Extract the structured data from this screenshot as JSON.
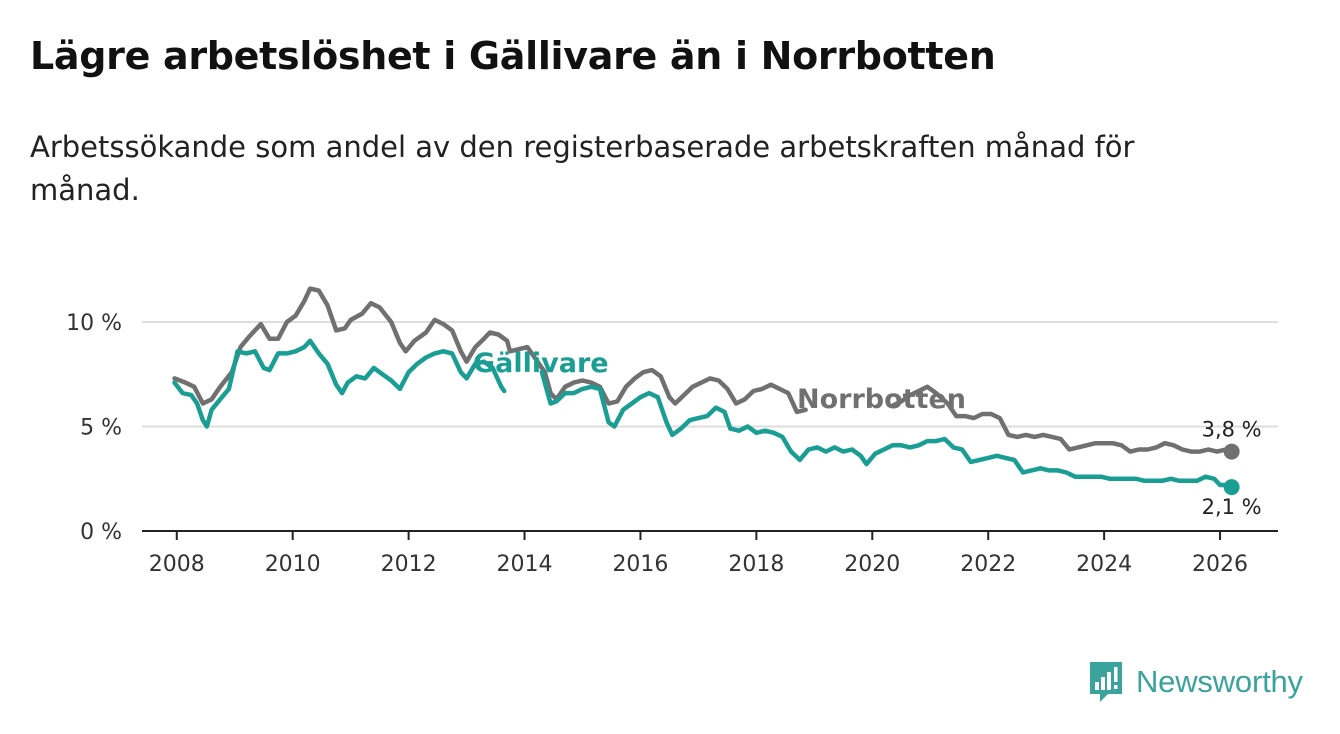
{
  "title": "Lägre arbetslöshet i Gällivare än i Norrbotten",
  "subtitle": "Arbetssökande som andel av den registerbaserade arbetskraften månad för månad.",
  "brand": {
    "name": "Newsworthy",
    "icon": "newsworthy-logo-icon",
    "color": "#3aa39b"
  },
  "colors": {
    "gallivare": "#1a9e94",
    "norrbotten": "#707070",
    "grid": "#dddddd",
    "axis": "#222222"
  },
  "chart_data": {
    "type": "line",
    "title": "Lägre arbetslöshet i Gällivare än i Norrbotten",
    "xlabel": "",
    "ylabel": "",
    "xlim": [
      2007.4,
      2027.0
    ],
    "ylim": [
      0,
      11
    ],
    "x_ticks": [
      2008,
      2010,
      2012,
      2014,
      2016,
      2018,
      2020,
      2022,
      2024,
      2026
    ],
    "x_tick_labels": [
      "2008",
      "2010",
      "2012",
      "2014",
      "2016",
      "2018",
      "2020",
      "2022",
      "2024",
      "2026"
    ],
    "y_ticks": [
      0,
      5,
      10
    ],
    "y_tick_labels": [
      "0 %",
      "5 %",
      "10 %"
    ],
    "grid": true,
    "series": [
      {
        "name": "Norrbotten",
        "label": "Norrbotten",
        "end_label": "3,8 %",
        "points": [
          [
            2007.96,
            7.3
          ],
          [
            2008.15,
            7.1
          ],
          [
            2008.3,
            6.9
          ],
          [
            2008.45,
            6.1
          ],
          [
            2008.6,
            6.3
          ],
          [
            2008.75,
            6.9
          ],
          [
            2008.95,
            7.6
          ],
          [
            2009.1,
            8.8
          ],
          [
            2009.25,
            9.3
          ],
          [
            2009.45,
            9.9
          ],
          [
            2009.6,
            9.2
          ],
          [
            2009.75,
            9.2
          ],
          [
            2009.9,
            10.0
          ],
          [
            2010.05,
            10.3
          ],
          [
            2010.2,
            11.0
          ],
          [
            2010.3,
            11.6
          ],
          [
            2010.45,
            11.5
          ],
          [
            2010.6,
            10.8
          ],
          [
            2010.75,
            9.6
          ],
          [
            2010.9,
            9.7
          ],
          [
            2011.0,
            10.1
          ],
          [
            2011.2,
            10.4
          ],
          [
            2011.35,
            10.9
          ],
          [
            2011.5,
            10.7
          ],
          [
            2011.7,
            10.0
          ],
          [
            2011.85,
            9.0
          ],
          [
            2011.95,
            8.6
          ],
          [
            2012.1,
            9.1
          ],
          [
            2012.3,
            9.5
          ],
          [
            2012.45,
            10.1
          ],
          [
            2012.6,
            9.9
          ],
          [
            2012.75,
            9.6
          ],
          [
            2012.9,
            8.6
          ],
          [
            2013.0,
            8.1
          ],
          [
            2013.15,
            8.8
          ],
          [
            2013.3,
            9.2
          ],
          [
            2013.4,
            9.5
          ],
          [
            2013.55,
            9.4
          ],
          [
            2013.7,
            9.1
          ],
          [
            2013.75,
            8.6
          ],
          [
            2014.05,
            8.8
          ],
          [
            2014.2,
            8.2
          ],
          [
            2014.35,
            7.6
          ],
          [
            2014.45,
            6.6
          ],
          [
            2014.55,
            6.3
          ],
          [
            2014.7,
            6.9
          ],
          [
            2014.85,
            7.1
          ],
          [
            2015.0,
            7.2
          ],
          [
            2015.15,
            7.1
          ],
          [
            2015.3,
            6.9
          ],
          [
            2015.45,
            6.1
          ],
          [
            2015.6,
            6.2
          ],
          [
            2015.75,
            6.9
          ],
          [
            2015.9,
            7.3
          ],
          [
            2016.05,
            7.6
          ],
          [
            2016.2,
            7.7
          ],
          [
            2016.35,
            7.4
          ],
          [
            2016.5,
            6.4
          ],
          [
            2016.6,
            6.1
          ],
          [
            2016.75,
            6.5
          ],
          [
            2016.9,
            6.9
          ],
          [
            2017.05,
            7.1
          ],
          [
            2017.2,
            7.3
          ],
          [
            2017.35,
            7.2
          ],
          [
            2017.5,
            6.8
          ],
          [
            2017.65,
            6.1
          ],
          [
            2017.8,
            6.3
          ],
          [
            2017.95,
            6.7
          ],
          [
            2018.1,
            6.8
          ],
          [
            2018.25,
            7.0
          ],
          [
            2018.4,
            6.8
          ],
          [
            2018.55,
            6.6
          ],
          [
            2018.7,
            5.7
          ],
          [
            2018.85,
            5.8
          ],
          [
            2020.35,
            6.0
          ],
          [
            2020.5,
            6.2
          ],
          [
            2020.65,
            6.5
          ],
          [
            2020.8,
            6.7
          ],
          [
            2020.95,
            6.9
          ],
          [
            2021.1,
            6.6
          ],
          [
            2021.3,
            6.1
          ],
          [
            2021.45,
            5.5
          ],
          [
            2021.6,
            5.5
          ],
          [
            2021.75,
            5.4
          ],
          [
            2021.9,
            5.6
          ],
          [
            2022.05,
            5.6
          ],
          [
            2022.2,
            5.4
          ],
          [
            2022.35,
            4.6
          ],
          [
            2022.5,
            4.5
          ],
          [
            2022.65,
            4.6
          ],
          [
            2022.8,
            4.5
          ],
          [
            2022.95,
            4.6
          ],
          [
            2023.1,
            4.5
          ],
          [
            2023.25,
            4.4
          ],
          [
            2023.4,
            3.9
          ],
          [
            2023.55,
            4.0
          ],
          [
            2023.7,
            4.1
          ],
          [
            2023.85,
            4.2
          ],
          [
            2024.0,
            4.2
          ],
          [
            2024.15,
            4.2
          ],
          [
            2024.3,
            4.1
          ],
          [
            2024.45,
            3.8
          ],
          [
            2024.6,
            3.9
          ],
          [
            2024.75,
            3.9
          ],
          [
            2024.9,
            4.0
          ],
          [
            2025.05,
            4.2
          ],
          [
            2025.2,
            4.1
          ],
          [
            2025.35,
            3.9
          ],
          [
            2025.5,
            3.8
          ],
          [
            2025.65,
            3.8
          ],
          [
            2025.8,
            3.9
          ],
          [
            2025.95,
            3.8
          ],
          [
            2026.1,
            3.9
          ],
          [
            2026.2,
            3.8
          ]
        ]
      },
      {
        "name": "Gällivare",
        "label": "Gällivare",
        "end_label": "2,1 %",
        "points": [
          [
            2007.96,
            7.1
          ],
          [
            2008.1,
            6.6
          ],
          [
            2008.25,
            6.5
          ],
          [
            2008.35,
            6.1
          ],
          [
            2008.45,
            5.3
          ],
          [
            2008.52,
            5.0
          ],
          [
            2008.6,
            5.8
          ],
          [
            2008.75,
            6.3
          ],
          [
            2008.9,
            6.8
          ],
          [
            2009.05,
            8.6
          ],
          [
            2009.2,
            8.5
          ],
          [
            2009.35,
            8.6
          ],
          [
            2009.5,
            7.8
          ],
          [
            2009.6,
            7.7
          ],
          [
            2009.75,
            8.5
          ],
          [
            2009.9,
            8.5
          ],
          [
            2010.05,
            8.6
          ],
          [
            2010.2,
            8.8
          ],
          [
            2010.3,
            9.1
          ],
          [
            2010.45,
            8.5
          ],
          [
            2010.6,
            8.0
          ],
          [
            2010.75,
            7.0
          ],
          [
            2010.85,
            6.6
          ],
          [
            2010.95,
            7.1
          ],
          [
            2011.1,
            7.4
          ],
          [
            2011.25,
            7.3
          ],
          [
            2011.4,
            7.8
          ],
          [
            2011.55,
            7.5
          ],
          [
            2011.7,
            7.2
          ],
          [
            2011.85,
            6.8
          ],
          [
            2012.0,
            7.6
          ],
          [
            2012.15,
            8.0
          ],
          [
            2012.3,
            8.3
          ],
          [
            2012.45,
            8.5
          ],
          [
            2012.6,
            8.6
          ],
          [
            2012.75,
            8.5
          ],
          [
            2012.9,
            7.6
          ],
          [
            2013.0,
            7.3
          ],
          [
            2013.15,
            8.0
          ],
          [
            2013.3,
            8.1
          ],
          [
            2013.45,
            7.8
          ],
          [
            2013.55,
            7.2
          ],
          [
            2013.6,
            6.9
          ],
          [
            2013.65,
            6.7
          ],
          [
            2014.3,
            7.6
          ],
          [
            2014.4,
            6.6
          ],
          [
            2014.45,
            6.1
          ],
          [
            2014.55,
            6.2
          ],
          [
            2014.7,
            6.6
          ],
          [
            2014.85,
            6.6
          ],
          [
            2015.0,
            6.8
          ],
          [
            2015.15,
            6.9
          ],
          [
            2015.3,
            6.8
          ],
          [
            2015.45,
            5.2
          ],
          [
            2015.55,
            5.0
          ],
          [
            2015.7,
            5.8
          ],
          [
            2015.85,
            6.1
          ],
          [
            2016.0,
            6.4
          ],
          [
            2016.15,
            6.6
          ],
          [
            2016.3,
            6.4
          ],
          [
            2016.45,
            5.2
          ],
          [
            2016.55,
            4.6
          ],
          [
            2016.7,
            4.9
          ],
          [
            2016.85,
            5.3
          ],
          [
            2017.0,
            5.4
          ],
          [
            2017.15,
            5.5
          ],
          [
            2017.3,
            5.9
          ],
          [
            2017.45,
            5.7
          ],
          [
            2017.55,
            4.9
          ],
          [
            2017.7,
            4.8
          ],
          [
            2017.85,
            5.0
          ],
          [
            2018.0,
            4.7
          ],
          [
            2018.15,
            4.8
          ],
          [
            2018.3,
            4.7
          ],
          [
            2018.45,
            4.5
          ],
          [
            2018.6,
            3.8
          ],
          [
            2018.75,
            3.4
          ],
          [
            2018.9,
            3.9
          ],
          [
            2019.05,
            4.0
          ],
          [
            2019.2,
            3.8
          ],
          [
            2019.35,
            4.0
          ],
          [
            2019.5,
            3.8
          ],
          [
            2019.65,
            3.9
          ],
          [
            2019.8,
            3.6
          ],
          [
            2019.9,
            3.2
          ],
          [
            2020.05,
            3.7
          ],
          [
            2020.2,
            3.9
          ],
          [
            2020.35,
            4.1
          ],
          [
            2020.5,
            4.1
          ],
          [
            2020.65,
            4.0
          ],
          [
            2020.8,
            4.1
          ],
          [
            2020.95,
            4.3
          ],
          [
            2021.1,
            4.3
          ],
          [
            2021.25,
            4.4
          ],
          [
            2021.4,
            4.0
          ],
          [
            2021.55,
            3.9
          ],
          [
            2021.7,
            3.3
          ],
          [
            2021.85,
            3.4
          ],
          [
            2022.0,
            3.5
          ],
          [
            2022.15,
            3.6
          ],
          [
            2022.3,
            3.5
          ],
          [
            2022.45,
            3.4
          ],
          [
            2022.6,
            2.8
          ],
          [
            2022.75,
            2.9
          ],
          [
            2022.9,
            3.0
          ],
          [
            2023.05,
            2.9
          ],
          [
            2023.2,
            2.9
          ],
          [
            2023.35,
            2.8
          ],
          [
            2023.5,
            2.6
          ],
          [
            2023.65,
            2.6
          ],
          [
            2023.8,
            2.6
          ],
          [
            2023.95,
            2.6
          ],
          [
            2024.1,
            2.5
          ],
          [
            2024.25,
            2.5
          ],
          [
            2024.4,
            2.5
          ],
          [
            2024.55,
            2.5
          ],
          [
            2024.7,
            2.4
          ],
          [
            2024.85,
            2.4
          ],
          [
            2025.0,
            2.4
          ],
          [
            2025.15,
            2.5
          ],
          [
            2025.3,
            2.4
          ],
          [
            2025.45,
            2.4
          ],
          [
            2025.6,
            2.4
          ],
          [
            2025.75,
            2.6
          ],
          [
            2025.9,
            2.5
          ],
          [
            2026.0,
            2.2
          ],
          [
            2026.1,
            2.2
          ],
          [
            2026.2,
            2.1
          ]
        ]
      }
    ]
  }
}
